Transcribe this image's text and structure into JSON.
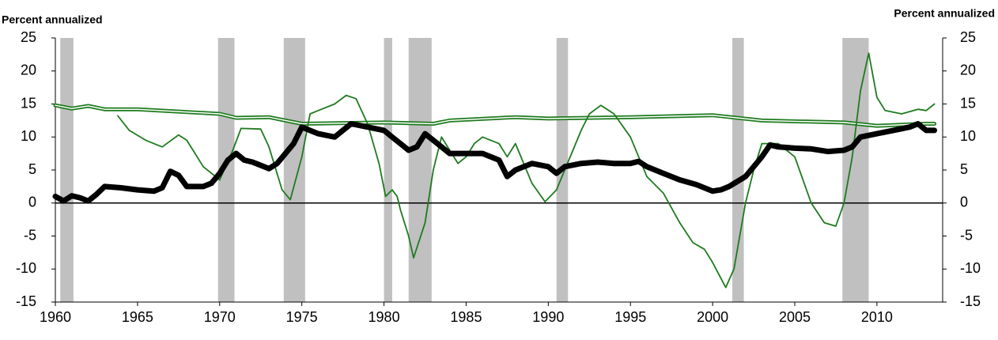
{
  "chart_data": {
    "type": "line",
    "y_label": "Percent annualized",
    "y2_label": "Percent annualized",
    "xlim": [
      1960,
      2014
    ],
    "xticks": [
      1960,
      1965,
      1970,
      1975,
      1980,
      1985,
      1990,
      1995,
      2000,
      2005,
      2010
    ],
    "ylim": [
      -15,
      25
    ],
    "yticks": [
      -15,
      -10,
      -5,
      0,
      5,
      10,
      15,
      20,
      25
    ],
    "y2lim": [
      -15,
      25
    ],
    "y2ticks": [
      -15,
      -10,
      -5,
      0,
      5,
      10,
      15,
      20,
      25
    ],
    "recessions": {
      "color": "#c0c0c0",
      "periods": [
        [
          1960.3,
          1961.1
        ],
        [
          1969.9,
          1970.9
        ],
        [
          1973.9,
          1975.2
        ],
        [
          1980.0,
          1980.5
        ],
        [
          1981.5,
          1982.9
        ],
        [
          1990.5,
          1991.2
        ],
        [
          2001.2,
          2001.9
        ],
        [
          2007.9,
          2009.5
        ]
      ]
    },
    "series": [
      {
        "color": "#1e7b1e",
        "style": "double",
        "x": [
          1960,
          1961,
          1962,
          1963,
          1965,
          1970,
          1971,
          1973,
          1975,
          1980,
          1983,
          1984,
          1988,
          1990,
          1995,
          2000,
          2003,
          2008,
          2010,
          2013,
          2013.5
        ],
        "values": [
          14.8,
          14.3,
          14.7,
          14.2,
          14.2,
          13.5,
          12.9,
          13,
          12,
          12.2,
          12,
          12.5,
          13,
          12.8,
          13,
          13.3,
          12.5,
          12.2,
          11.7,
          12,
          12
        ]
      },
      {
        "color": "#1e7b1e",
        "style": "thin",
        "x": [
          1963.8,
          1964.5,
          1965.5,
          1966.5,
          1967.5,
          1968,
          1969,
          1970,
          1970.8,
          1971.3,
          1972.5,
          1973,
          1973.8,
          1974.3,
          1975,
          1975.5,
          1976,
          1977,
          1977.7,
          1978.3,
          1979,
          1979.7,
          1980.1,
          1980.5,
          1980.8,
          1981,
          1981.5,
          1981.8,
          1982.5,
          1983,
          1983.5,
          1984,
          1984.5,
          1985,
          1985.5,
          1986,
          1987,
          1987.5,
          1988,
          1989,
          1989.8,
          1990.5,
          1991,
          1991.5,
          1992,
          1992.5,
          1993.2,
          1994,
          1995,
          1996,
          1997,
          1998,
          1998.8,
          1999.5,
          2000,
          2000.8,
          2001.3,
          2002,
          2002.5,
          2003,
          2004,
          2005,
          2006,
          2006.8,
          2007.5,
          2008,
          2008.5,
          2009,
          2009.5,
          2010,
          2010.5,
          2011.5,
          2012.5,
          2013,
          2013.5
        ],
        "values": [
          13.2,
          11,
          9.5,
          8.5,
          10.3,
          9.5,
          5.5,
          3.5,
          8,
          11.3,
          11.2,
          8.5,
          2,
          0.5,
          7,
          13.5,
          14,
          15,
          16.3,
          15.8,
          12,
          6,
          1,
          2,
          1,
          -1,
          -5,
          -8.3,
          -3,
          5,
          10,
          8,
          6,
          7,
          9,
          10,
          9,
          7,
          9,
          3,
          0.2,
          2,
          5,
          8,
          11,
          13.5,
          14.8,
          13.5,
          10,
          4,
          1.5,
          -3,
          -6,
          -7,
          -9,
          -12.8,
          -10,
          0,
          5,
          9,
          9,
          7,
          0,
          -3,
          -3.5,
          0,
          7,
          17,
          22.7,
          16,
          14,
          13.5,
          14.2,
          14,
          15
        ]
      },
      {
        "color": "#000000",
        "style": "thick",
        "x": [
          1960,
          1960.5,
          1961,
          1961.5,
          1962,
          1962.5,
          1963,
          1964,
          1965,
          1966,
          1966.5,
          1967,
          1967.5,
          1968,
          1969,
          1969.5,
          1970,
          1970.5,
          1971,
          1971.5,
          1972,
          1973,
          1973.5,
          1974,
          1974.5,
          1975,
          1976,
          1977,
          1977.5,
          1978,
          1979,
          1980,
          1980.5,
          1981,
          1981.5,
          1982,
          1982.5,
          1983,
          1984,
          1985,
          1986,
          1987,
          1987.5,
          1988,
          1989,
          1990,
          1990.5,
          1991,
          1992,
          1993,
          1994,
          1995,
          1995.5,
          1996,
          1997,
          1998,
          1999,
          2000,
          2000.5,
          2001,
          2002,
          2003,
          2003.5,
          2004,
          2005,
          2006,
          2007,
          2008,
          2008.5,
          2009,
          2010,
          2011,
          2012,
          2012.5,
          2013,
          2013.5
        ],
        "values": [
          1,
          0.3,
          1.1,
          0.8,
          0.3,
          1.3,
          2.5,
          2.3,
          2,
          1.8,
          2.3,
          4.8,
          4.2,
          2.5,
          2.5,
          3,
          4.5,
          6.5,
          7.5,
          6.5,
          6.2,
          5.2,
          6,
          7.5,
          9,
          11.5,
          10.5,
          10,
          11,
          12,
          11.5,
          11,
          10,
          9,
          8,
          8.5,
          10.5,
          9.5,
          7.5,
          7.5,
          7.5,
          6.5,
          4,
          5,
          6,
          5.5,
          4.5,
          5.5,
          6,
          6.2,
          6,
          6,
          6.3,
          5.5,
          4.5,
          3.5,
          2.8,
          1.8,
          2,
          2.5,
          4,
          7,
          8.8,
          8.5,
          8.3,
          8.2,
          7.8,
          8,
          8.5,
          10,
          10.5,
          11,
          11.5,
          12,
          11,
          11
        ]
      }
    ]
  }
}
